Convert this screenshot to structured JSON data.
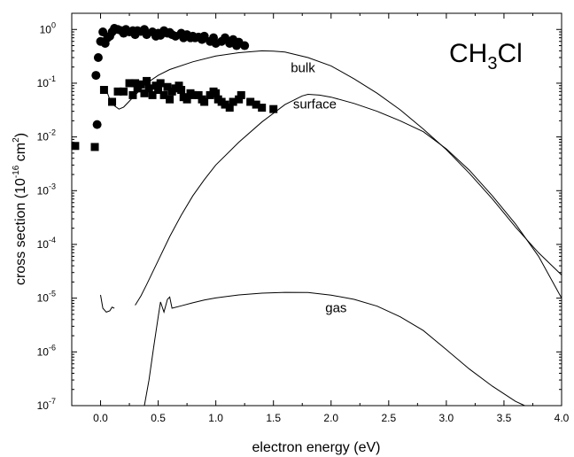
{
  "chart_data": {
    "type": "line",
    "title": "",
    "annotation": {
      "main": "CH",
      "sub": "3",
      "tail": "Cl"
    },
    "xlabel": "electron energy (eV)",
    "ylabel": {
      "main": "cross section (10",
      "sup1": "-16",
      "mid": " cm",
      "sup2": "2",
      "end": ")"
    },
    "xlim": [
      -0.25,
      4.0
    ],
    "ylim": [
      1e-07,
      2
    ],
    "yscale": "log",
    "grid": false,
    "x_ticks": [
      "0.0",
      "0.5",
      "1.0",
      "1.5",
      "2.0",
      "2.5",
      "3.0",
      "3.5",
      "4.0"
    ],
    "y_ticks": [
      {
        "exp": "0",
        "value": 1
      },
      {
        "exp": "-1",
        "value": 0.1
      },
      {
        "exp": "-2",
        "value": 0.01
      },
      {
        "exp": "-3",
        "value": 0.001
      },
      {
        "exp": "-4",
        "value": 0.0001
      },
      {
        "exp": "-5",
        "value": 1e-05
      },
      {
        "exp": "-6",
        "value": 1e-06
      },
      {
        "exp": "-7",
        "value": 1e-07
      }
    ],
    "series": [
      {
        "name": "bulk",
        "style": "line",
        "label_at": [
          1.65,
          0.16
        ],
        "points": [
          [
            0.05,
            0.075
          ],
          [
            0.08,
            0.05
          ],
          [
            0.12,
            0.038
          ],
          [
            0.16,
            0.033
          ],
          [
            0.2,
            0.036
          ],
          [
            0.3,
            0.06
          ],
          [
            0.4,
            0.1
          ],
          [
            0.5,
            0.14
          ],
          [
            0.6,
            0.18
          ],
          [
            0.8,
            0.25
          ],
          [
            1.0,
            0.32
          ],
          [
            1.2,
            0.37
          ],
          [
            1.4,
            0.4
          ],
          [
            1.5,
            0.395
          ],
          [
            1.6,
            0.38
          ],
          [
            1.8,
            0.3
          ],
          [
            2.0,
            0.21
          ],
          [
            2.2,
            0.12
          ],
          [
            2.4,
            0.065
          ],
          [
            2.6,
            0.032
          ],
          [
            2.8,
            0.014
          ],
          [
            3.0,
            0.0058
          ],
          [
            3.2,
            0.0021
          ],
          [
            3.4,
            0.0007
          ],
          [
            3.6,
            0.00021
          ],
          [
            3.8,
            7e-05
          ],
          [
            4.0,
            2.7e-05
          ]
        ]
      },
      {
        "name": "surface",
        "style": "line",
        "label_at": [
          1.67,
          0.034
        ],
        "points": [
          [
            0.3,
            7.4e-06
          ],
          [
            0.35,
            1.1e-05
          ],
          [
            0.4,
            1.8e-05
          ],
          [
            0.45,
            3e-05
          ],
          [
            0.5,
            5e-05
          ],
          [
            0.6,
            0.00014
          ],
          [
            0.7,
            0.00035
          ],
          [
            0.8,
            0.0008
          ],
          [
            0.9,
            0.0016
          ],
          [
            1.0,
            0.003
          ],
          [
            1.2,
            0.008
          ],
          [
            1.4,
            0.019
          ],
          [
            1.6,
            0.04
          ],
          [
            1.75,
            0.058
          ],
          [
            1.8,
            0.062
          ],
          [
            1.9,
            0.06
          ],
          [
            2.0,
            0.055
          ],
          [
            2.2,
            0.042
          ],
          [
            2.4,
            0.03
          ],
          [
            2.6,
            0.02
          ],
          [
            2.8,
            0.0125
          ],
          [
            3.0,
            0.006
          ],
          [
            3.2,
            0.0024
          ],
          [
            3.4,
            0.0008
          ],
          [
            3.6,
            0.00024
          ],
          [
            3.8,
            6e-05
          ],
          [
            4.0,
            1e-05
          ]
        ]
      },
      {
        "name": "gas",
        "style": "line",
        "label_at": [
          1.95,
          5.5e-06
        ],
        "points": [
          [
            0.0,
            1.15e-05
          ],
          [
            0.02,
            6.5e-06
          ],
          [
            0.05,
            5.5e-06
          ],
          [
            0.08,
            5.8e-06
          ],
          [
            0.1,
            6.8e-06
          ],
          [
            0.12,
            6.5e-06
          ]
        ]
      },
      {
        "name": "gas",
        "style": "line",
        "label_at": null,
        "points": [
          [
            0.38,
            1e-07
          ],
          [
            0.42,
            3e-07
          ],
          [
            0.46,
            1.2e-06
          ],
          [
            0.5,
            4.5e-06
          ],
          [
            0.52,
            8.5e-06
          ],
          [
            0.55,
            5.5e-06
          ],
          [
            0.58,
            9.5e-06
          ],
          [
            0.6,
            1.05e-05
          ],
          [
            0.62,
            6.5e-06
          ],
          [
            0.7,
            7.2e-06
          ],
          [
            0.8,
            8.2e-06
          ],
          [
            0.9,
            9.2e-06
          ],
          [
            1.0,
            1.01e-05
          ],
          [
            1.2,
            1.15e-05
          ],
          [
            1.4,
            1.24e-05
          ],
          [
            1.6,
            1.28e-05
          ],
          [
            1.8,
            1.27e-05
          ],
          [
            2.0,
            1.14e-05
          ],
          [
            2.2,
            9.5e-06
          ],
          [
            2.4,
            7.1e-06
          ],
          [
            2.6,
            4.5e-06
          ],
          [
            2.8,
            2.5e-06
          ],
          [
            3.0,
            1.1e-06
          ],
          [
            3.2,
            4.8e-07
          ],
          [
            3.4,
            2.3e-07
          ],
          [
            3.6,
            1.2e-07
          ],
          [
            3.68,
            1e-07
          ]
        ]
      },
      {
        "name": "",
        "style": "circle",
        "points": [
          [
            -0.04,
            0.14
          ],
          [
            -0.03,
            0.017
          ],
          [
            -0.02,
            0.3
          ],
          [
            0.0,
            0.6
          ],
          [
            0.02,
            0.9
          ],
          [
            0.04,
            0.55
          ],
          [
            0.06,
            0.7
          ],
          [
            0.08,
            0.75
          ],
          [
            0.1,
            0.9
          ],
          [
            0.12,
            1.05
          ],
          [
            0.15,
            1.0
          ],
          [
            0.18,
            0.95
          ],
          [
            0.2,
            0.85
          ],
          [
            0.22,
            1.0
          ],
          [
            0.25,
            0.9
          ],
          [
            0.28,
            0.95
          ],
          [
            0.3,
            0.8
          ],
          [
            0.32,
            0.95
          ],
          [
            0.35,
            0.92
          ],
          [
            0.38,
            1.0
          ],
          [
            0.4,
            0.8
          ],
          [
            0.45,
            0.9
          ],
          [
            0.48,
            0.75
          ],
          [
            0.5,
            0.85
          ],
          [
            0.52,
            0.78
          ],
          [
            0.55,
            0.95
          ],
          [
            0.58,
            0.85
          ],
          [
            0.6,
            0.88
          ],
          [
            0.62,
            0.8
          ],
          [
            0.65,
            0.75
          ],
          [
            0.7,
            0.85
          ],
          [
            0.72,
            0.7
          ],
          [
            0.75,
            0.8
          ],
          [
            0.78,
            0.7
          ],
          [
            0.8,
            0.75
          ],
          [
            0.82,
            0.7
          ],
          [
            0.85,
            0.72
          ],
          [
            0.88,
            0.65
          ],
          [
            0.9,
            0.75
          ],
          [
            0.95,
            0.6
          ],
          [
            0.98,
            0.7
          ],
          [
            1.0,
            0.55
          ],
          [
            1.05,
            0.6
          ],
          [
            1.08,
            0.7
          ],
          [
            1.12,
            0.55
          ],
          [
            1.15,
            0.65
          ],
          [
            1.18,
            0.5
          ],
          [
            1.2,
            0.58
          ],
          [
            1.25,
            0.5
          ]
        ]
      },
      {
        "name": "",
        "style": "square",
        "points": [
          [
            -0.22,
            0.0068
          ],
          [
            -0.05,
            0.0065
          ],
          [
            0.03,
            0.075
          ],
          [
            0.1,
            0.045
          ],
          [
            0.15,
            0.07
          ],
          [
            0.2,
            0.07
          ],
          [
            0.25,
            0.1
          ],
          [
            0.28,
            0.06
          ],
          [
            0.3,
            0.1
          ],
          [
            0.32,
            0.08
          ],
          [
            0.35,
            0.095
          ],
          [
            0.38,
            0.065
          ],
          [
            0.4,
            0.11
          ],
          [
            0.42,
            0.08
          ],
          [
            0.45,
            0.06
          ],
          [
            0.48,
            0.09
          ],
          [
            0.5,
            0.075
          ],
          [
            0.52,
            0.1
          ],
          [
            0.55,
            0.06
          ],
          [
            0.58,
            0.085
          ],
          [
            0.6,
            0.05
          ],
          [
            0.62,
            0.07
          ],
          [
            0.65,
            0.08
          ],
          [
            0.68,
            0.09
          ],
          [
            0.7,
            0.075
          ],
          [
            0.72,
            0.055
          ],
          [
            0.75,
            0.05
          ],
          [
            0.78,
            0.065
          ],
          [
            0.8,
            0.06
          ],
          [
            0.85,
            0.06
          ],
          [
            0.88,
            0.05
          ],
          [
            0.9,
            0.045
          ],
          [
            0.95,
            0.06
          ],
          [
            0.98,
            0.07
          ],
          [
            1.0,
            0.065
          ],
          [
            1.02,
            0.05
          ],
          [
            1.05,
            0.045
          ],
          [
            1.08,
            0.04
          ],
          [
            1.12,
            0.035
          ],
          [
            1.15,
            0.045
          ],
          [
            1.2,
            0.05
          ],
          [
            1.22,
            0.06
          ],
          [
            1.3,
            0.045
          ],
          [
            1.35,
            0.04
          ],
          [
            1.4,
            0.035
          ],
          [
            1.5,
            0.033
          ]
        ]
      }
    ]
  }
}
